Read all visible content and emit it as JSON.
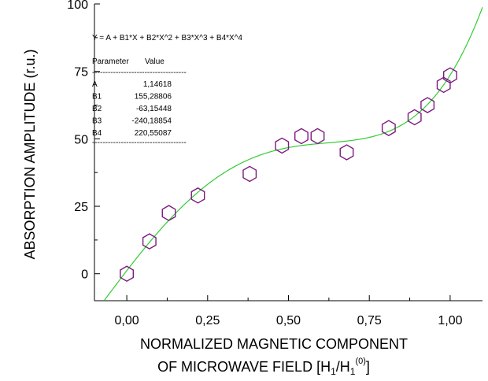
{
  "chart_data": {
    "type": "scatter",
    "xlabel_line1": "NORMALIZED MAGNETIC COMPONENT",
    "xlabel_line2_prefix": "OF MICROWAVE FIELD [H",
    "xlabel_sub1": "1",
    "xlabel_slash": "/H",
    "xlabel_sub2": "1",
    "xlabel_sup": "(0)",
    "xlabel_close": "]",
    "ylabel": "ABSORPTION AMPLITUDE (r.u.)",
    "xlim": [
      -0.1,
      1.1
    ],
    "ylim": [
      -10,
      100
    ],
    "x_ticks": [
      {
        "value": 0.0,
        "label": "0,00"
      },
      {
        "value": 0.25,
        "label": "0,25"
      },
      {
        "value": 0.5,
        "label": "0,50"
      },
      {
        "value": 0.75,
        "label": "0,75"
      },
      {
        "value": 1.0,
        "label": "1,00"
      }
    ],
    "y_ticks": [
      {
        "value": 0,
        "label": "0"
      },
      {
        "value": 25,
        "label": "25"
      },
      {
        "value": 50,
        "label": "50"
      },
      {
        "value": 75,
        "label": "75"
      },
      {
        "value": 100,
        "label": "100"
      }
    ],
    "points": [
      {
        "x": 0.0,
        "y": 0.0
      },
      {
        "x": 0.07,
        "y": 12.0
      },
      {
        "x": 0.13,
        "y": 22.5
      },
      {
        "x": 0.22,
        "y": 29.0
      },
      {
        "x": 0.38,
        "y": 37.0
      },
      {
        "x": 0.48,
        "y": 47.5
      },
      {
        "x": 0.54,
        "y": 51.0
      },
      {
        "x": 0.59,
        "y": 51.0
      },
      {
        "x": 0.68,
        "y": 45.0
      },
      {
        "x": 0.81,
        "y": 54.0
      },
      {
        "x": 0.89,
        "y": 58.0
      },
      {
        "x": 0.93,
        "y": 62.5
      },
      {
        "x": 0.98,
        "y": 70.0
      },
      {
        "x": 1.0,
        "y": 73.5
      }
    ],
    "fit": {
      "formula": "Y = A + B1*X + B2*X^2 + B3*X^3 + B4*X^4",
      "coefficients": {
        "A": 1.14618,
        "B1": 155.28806,
        "B2": -63.15448,
        "B3": -240.18854,
        "B4": 220.55087
      },
      "x_range": [
        -0.07,
        1.1
      ]
    },
    "colors": {
      "markers": "#7b1a7f",
      "fit_line": "#33cc33",
      "axes": "#000000"
    },
    "fit_table": {
      "header_parameter": "Parameter",
      "header_value": "Value",
      "separator": "------------------------------------",
      "rows": [
        {
          "param": "A",
          "value": "1,14618"
        },
        {
          "param": "B1",
          "value": "155,28806"
        },
        {
          "param": "B2",
          "value": "-63,15448"
        },
        {
          "param": "B3",
          "value": "-240,18854"
        },
        {
          "param": "B4",
          "value": "220,55087"
        }
      ]
    }
  }
}
